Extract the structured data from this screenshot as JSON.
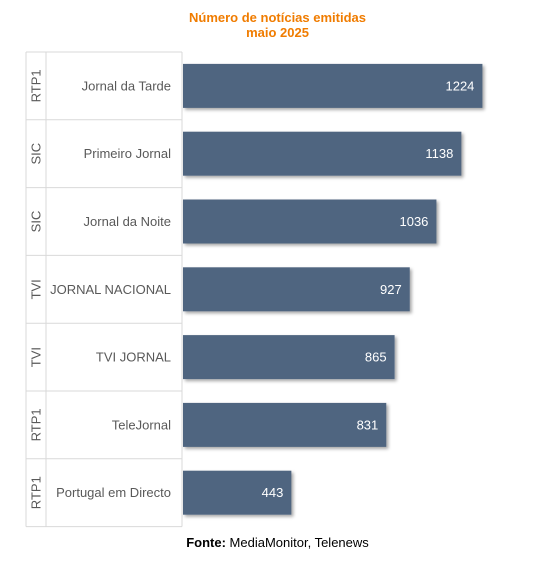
{
  "chart_data": {
    "type": "bar",
    "orientation": "horizontal",
    "title": "Número de notícias emitidas",
    "subtitle": "maio 2025",
    "groups": [
      "RTP1",
      "SIC",
      "SIC",
      "TVI",
      "TVI",
      "RTP1",
      "RTP1"
    ],
    "categories": [
      "Jornal da Tarde",
      "Primeiro Jornal",
      "Jornal da Noite",
      "JORNAL NACIONAL",
      "TVI JORNAL",
      "TeleJornal",
      "Portugal em Directo"
    ],
    "values": [
      1224,
      1138,
      1036,
      927,
      865,
      831,
      443
    ],
    "xlim": [
      0,
      1300
    ],
    "bar_color": "#4f6580",
    "label_color": "#ffffff",
    "grid": false,
    "legend": "none"
  },
  "source": {
    "label": "Fonte:",
    "text": "MediaMonitor, Telenews"
  },
  "colors": {
    "title": "#f07c00",
    "axis_text": "#595959",
    "lines": "#d9d9d9"
  }
}
